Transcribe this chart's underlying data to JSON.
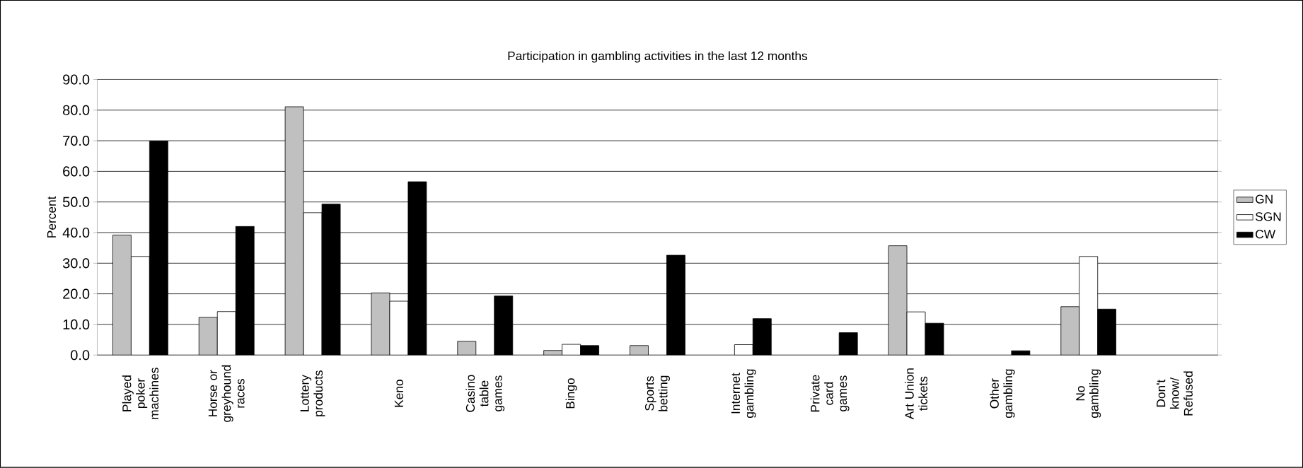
{
  "chart_data": {
    "type": "bar",
    "title": "Participation in gambling activities in the last 12 months",
    "ylabel": "Percent",
    "categories": [
      "Played poker machines",
      "Horse or greyhound races",
      "Lottery products",
      "Keno",
      "Casino table games",
      "Bingo",
      "Sports betting",
      "Internet gambling",
      "Private card games",
      "Art Union tickets",
      "Other gambling",
      "No gambling",
      "Don't know/ Refused"
    ],
    "series": [
      {
        "name": "GN",
        "color": "#c0c0c0",
        "values": [
          39.2,
          12.3,
          81.1,
          20.3,
          4.5,
          1.5,
          3.1,
          null,
          null,
          35.7,
          null,
          15.8,
          null
        ]
      },
      {
        "name": "SGN",
        "color": "#ffffff",
        "values": [
          32.2,
          14.2,
          46.5,
          17.6,
          null,
          3.5,
          null,
          3.4,
          null,
          14.1,
          null,
          32.2,
          null
        ]
      },
      {
        "name": "CW",
        "color": "#000000",
        "values": [
          69.9,
          42.0,
          49.3,
          56.6,
          19.3,
          3.1,
          32.6,
          11.9,
          7.3,
          10.4,
          1.4,
          15.0,
          null
        ]
      }
    ],
    "ylim": [
      0,
      90
    ],
    "yticks": [
      {
        "value": 0,
        "label": "0.0"
      },
      {
        "value": 10,
        "label": "10.0"
      },
      {
        "value": 20,
        "label": "20.0"
      },
      {
        "value": 30,
        "label": "30.0"
      },
      {
        "value": 40,
        "label": "40.0"
      },
      {
        "value": 50,
        "label": "50.0"
      },
      {
        "value": 60,
        "label": "60.0"
      },
      {
        "value": 70,
        "label": "70.0"
      },
      {
        "value": 80,
        "label": "80.0"
      },
      {
        "value": 90,
        "label": "90.0"
      }
    ],
    "grid": "y",
    "legend": "right"
  }
}
